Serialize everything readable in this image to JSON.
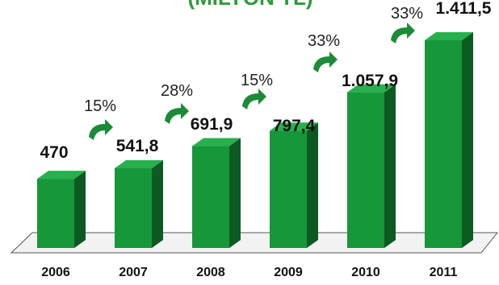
{
  "chart_data": {
    "type": "bar",
    "title": "(MİLYON TL)",
    "categories": [
      "2006",
      "2007",
      "2008",
      "2009",
      "2010",
      "2011"
    ],
    "values": [
      470,
      541.8,
      691.9,
      797.4,
      1057.9,
      1411.5
    ],
    "value_labels": [
      "470",
      "541,8",
      "691,9",
      "797,4",
      "1.057,9",
      "1.411,5"
    ],
    "growth_labels": [
      "15%",
      "28%",
      "15%",
      "33%",
      "33%"
    ],
    "ylim": [
      0,
      1411.5
    ],
    "grid": false,
    "legend": "none",
    "colors": {
      "bar_front": "#16973a",
      "bar_side": "#0c5a22",
      "bar_top": "#27b04d",
      "arrow": "#1c8a37",
      "floor": "#f2f2f2",
      "floor_edge": "#555555",
      "title": "#2e9a3a"
    }
  }
}
